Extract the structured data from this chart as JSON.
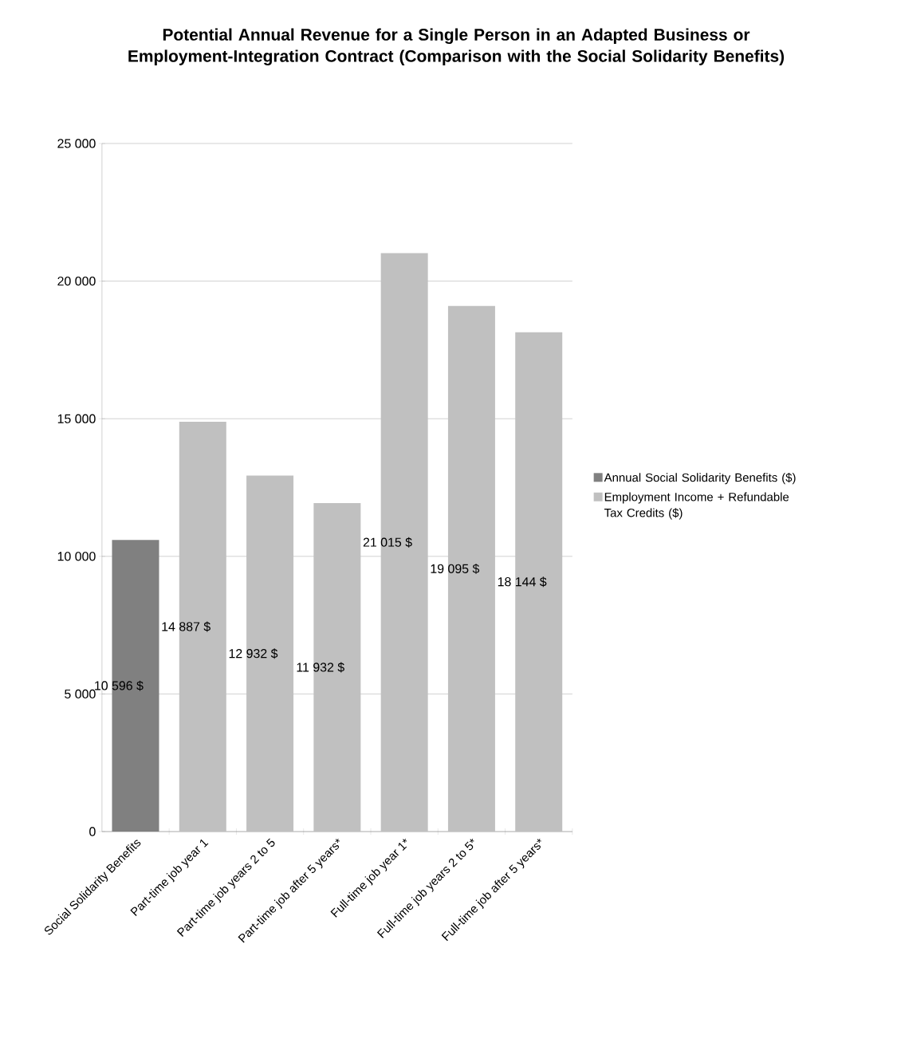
{
  "chart_data": {
    "type": "bar",
    "title": "Potential Annual Revenue for a Single Person in an Adapted Business or Employment-Integration Contract (Comparison with the Social Solidarity Benefits)",
    "categories": [
      "Social Solidarity Benefits",
      "Part-time job year 1",
      "Part-time job years 2 to 5",
      "Part-time job after 5 years*",
      "Full-time job year 1*",
      "Full-time job years 2 to 5*",
      "Full-time job after 5 years*"
    ],
    "series": [
      {
        "name": "Annual Social Solidarity Benefits ($)",
        "color": "#808080",
        "values": [
          10596,
          null,
          null,
          null,
          null,
          null,
          null
        ],
        "value_labels": [
          "10 596 $",
          null,
          null,
          null,
          null,
          null,
          null
        ]
      },
      {
        "name": "Employment Income + Refundable Tax Credits ($)",
        "color": "#c0c0c0",
        "values": [
          null,
          14887,
          12932,
          11932,
          21015,
          19095,
          18144
        ],
        "value_labels": [
          null,
          "14 887 $",
          "12 932 $",
          "11 932 $",
          "21 015 $",
          "19 095 $",
          "18 144 $"
        ]
      }
    ],
    "ylim": [
      0,
      25000
    ],
    "yticks": [
      0,
      {
        "value": 5000,
        "label": "5 000"
      },
      {
        "value": 10000,
        "label": "10 000"
      },
      {
        "value": 15000,
        "label": "15 000"
      },
      {
        "value": 20000,
        "label": "20 000"
      },
      {
        "value": 25000,
        "label": "25 000"
      }
    ],
    "grid": "y",
    "legend": "right"
  }
}
